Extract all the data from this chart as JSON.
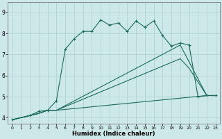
{
  "xlabel": "Humidex (Indice chaleur)",
  "background_color": "#cde8e8",
  "grid_color": "#aacfcf",
  "line_color": "#1a6b5a",
  "xlim": [
    -0.5,
    23.5
  ],
  "ylim": [
    3.7,
    9.5
  ],
  "xticks": [
    0,
    1,
    2,
    3,
    4,
    5,
    6,
    7,
    8,
    9,
    10,
    11,
    12,
    13,
    14,
    15,
    16,
    17,
    18,
    19,
    20,
    21,
    22,
    23
  ],
  "yticks": [
    4,
    5,
    6,
    7,
    8,
    9
  ],
  "series": [
    {
      "x": [
        0,
        2,
        3,
        4,
        5,
        6,
        7,
        8,
        9,
        10,
        11,
        12,
        13,
        14,
        15,
        16,
        17,
        18,
        19,
        20,
        21,
        22,
        23
      ],
      "y": [
        3.9,
        4.1,
        4.3,
        4.35,
        4.8,
        7.25,
        7.75,
        8.1,
        8.1,
        8.65,
        8.4,
        8.5,
        8.1,
        8.6,
        8.3,
        8.6,
        7.9,
        7.4,
        7.55,
        7.45,
        5.0,
        5.05,
        5.05
      ],
      "marker": "+"
    },
    {
      "x": [
        0,
        3,
        4,
        5,
        19,
        20,
        22,
        23
      ],
      "y": [
        3.9,
        4.2,
        4.35,
        4.35,
        7.45,
        6.65,
        5.05,
        5.05
      ],
      "marker": null
    },
    {
      "x": [
        0,
        3,
        4,
        5,
        19,
        20,
        22,
        23
      ],
      "y": [
        3.9,
        4.2,
        4.35,
        4.35,
        6.8,
        6.35,
        5.05,
        5.05
      ],
      "marker": null
    },
    {
      "x": [
        0,
        3,
        4,
        5,
        22,
        23
      ],
      "y": [
        3.9,
        4.2,
        4.35,
        4.35,
        5.05,
        5.05
      ],
      "marker": null
    }
  ]
}
